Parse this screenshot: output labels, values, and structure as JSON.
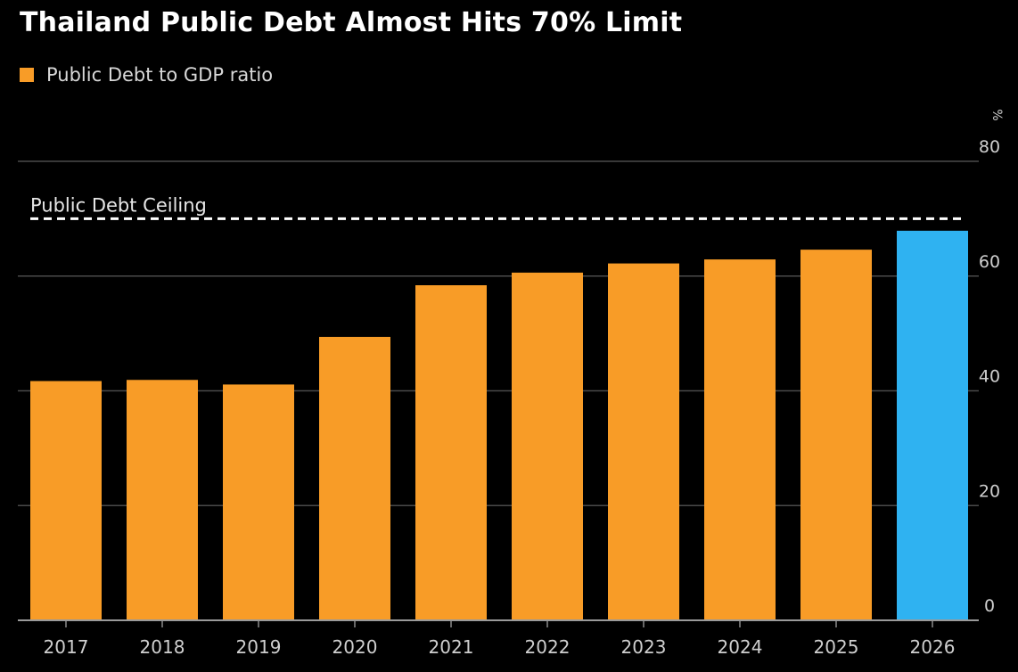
{
  "chart_data": {
    "type": "bar",
    "title": "Thailand Public Debt Almost Hits 70% Limit",
    "xlabel": "",
    "ylabel": "",
    "y_unit": "%",
    "ylim": [
      0,
      80
    ],
    "y_ticks": [
      0,
      20,
      40,
      60,
      80
    ],
    "categories": [
      "2017",
      "2018",
      "2019",
      "2020",
      "2021",
      "2022",
      "2023",
      "2024",
      "2025",
      "2026"
    ],
    "series": [
      {
        "name": "Public Debt to GDP ratio",
        "values": [
          41.7,
          41.9,
          41.1,
          49.4,
          58.4,
          60.6,
          62.2,
          62.9,
          64.6,
          67.9
        ]
      }
    ],
    "highlight": {
      "category": "2026",
      "color": "#2fb2f1"
    },
    "reference_line": {
      "label": "Public Debt Ceiling",
      "value": 70,
      "style": "dashed",
      "color": "#ffffff"
    },
    "colors": {
      "bar": "#f89c27",
      "highlight": "#2fb2f1",
      "grid": "#4a4a4a",
      "background": "#000000"
    },
    "legend_position": "top-left",
    "y_axis_position": "right",
    "grid": true
  }
}
